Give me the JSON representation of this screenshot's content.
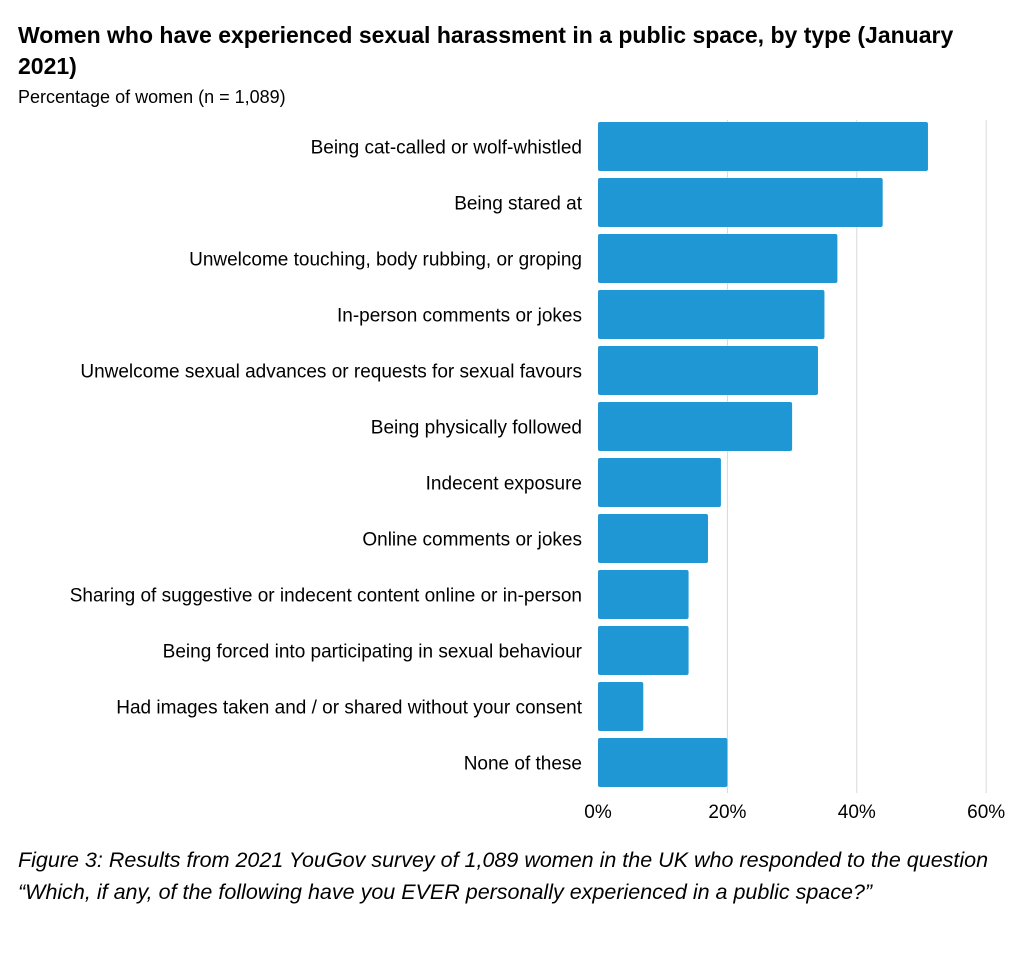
{
  "chart_data": {
    "type": "bar",
    "orientation": "horizontal",
    "title": "Women who have experienced sexual harassment in a public space, by type (January 2021)",
    "subtitle": "Percentage of women (n =  1,089)",
    "categories": [
      "Being cat-called or wolf-whistled",
      "Being stared at",
      "Unwelcome touching, body rubbing, or groping",
      "In-person comments or jokes",
      "Unwelcome sexual advances or requests for sexual favours",
      "Being physically followed",
      "Indecent exposure",
      "Online comments or jokes",
      "Sharing of suggestive or indecent content online or in-person",
      "Being forced into participating in sexual behaviour",
      "Had images taken and / or shared without your consent",
      "None of these"
    ],
    "values": [
      51,
      44,
      37,
      35,
      34,
      30,
      19,
      17,
      14,
      14,
      7,
      20
    ],
    "xlim": [
      0,
      60
    ],
    "x_ticks": [
      0,
      20,
      40,
      60
    ],
    "x_tick_labels": [
      "0%",
      "20%",
      "40%",
      "60%"
    ],
    "grid": "vertical",
    "bar_color": "#1f97d4",
    "grid_color": "#d9d9d9"
  },
  "caption": "Figure 3: Results from 2021 YouGov survey of 1,089 women in the UK who responded to the question  “Which, if any, of the following have you EVER personally experienced in a public space?”"
}
